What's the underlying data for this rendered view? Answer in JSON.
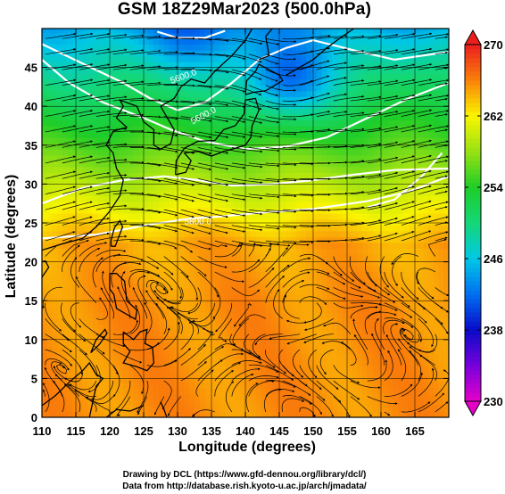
{
  "title": "GSM 18Z29Mar2023 (500.0hPa)",
  "x_axis": {
    "label": "Longitude (degrees)",
    "range": [
      110,
      170
    ],
    "ticks": [
      110,
      115,
      120,
      125,
      130,
      135,
      140,
      145,
      150,
      155,
      160,
      165
    ]
  },
  "y_axis": {
    "label": "Latitude  (degrees)",
    "range": [
      0,
      50
    ],
    "ticks": [
      0,
      5,
      10,
      15,
      20,
      25,
      30,
      35,
      40,
      45
    ]
  },
  "colorbar": {
    "min": 230,
    "max": 270,
    "tick_labels": [
      230,
      238,
      246,
      254,
      262,
      270
    ],
    "extend": "both"
  },
  "contours": {
    "labels": [
      "5600.0",
      "5600.0",
      "5800.0"
    ]
  },
  "credits": {
    "line1": "Drawing by DCL (https://www.gfd-dennou.org/library/dcl/)",
    "line2": "Data from http://database.rish.kyoto-u.ac.jp/arch/jmadata/"
  }
}
